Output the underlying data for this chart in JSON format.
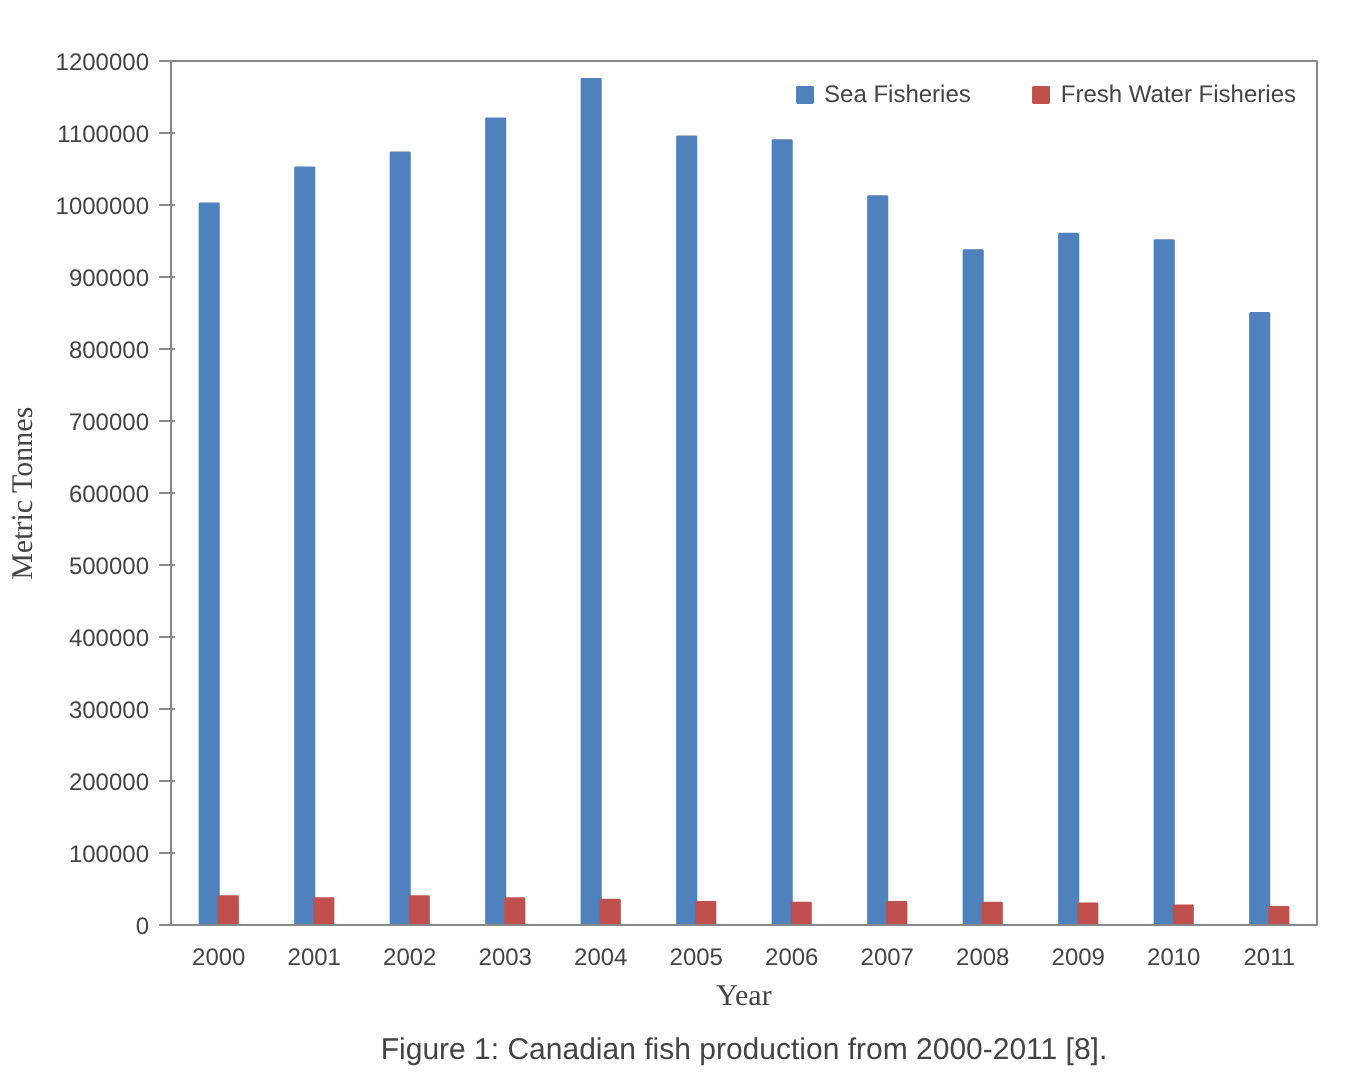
{
  "chart_data": {
    "type": "bar",
    "title": "Figure 1: Canadian fish production from 2000-2011 [8].",
    "xlabel": "Year",
    "ylabel": "Metric Tonnes",
    "categories": [
      "2000",
      "2001",
      "2002",
      "2003",
      "2004",
      "2005",
      "2006",
      "2007",
      "2008",
      "2009",
      "2010",
      "2011"
    ],
    "series": [
      {
        "name": "Sea Fisheries",
        "color": "#4f81bd",
        "values": [
          1002000,
          1052000,
          1073000,
          1120000,
          1175000,
          1095000,
          1090000,
          1012000,
          937000,
          960000,
          951000,
          850000
        ]
      },
      {
        "name": "Fresh Water Fisheries",
        "color": "#c0504d",
        "values": [
          40000,
          37000,
          40000,
          37000,
          35000,
          32000,
          31000,
          32000,
          31000,
          30000,
          27000,
          25000
        ]
      }
    ],
    "ylim": [
      0,
      1200000
    ],
    "yticks": [
      0,
      100000,
      200000,
      300000,
      400000,
      500000,
      600000,
      700000,
      800000,
      900000,
      1000000,
      1100000,
      1200000
    ],
    "grid": false,
    "legend": "top right"
  }
}
